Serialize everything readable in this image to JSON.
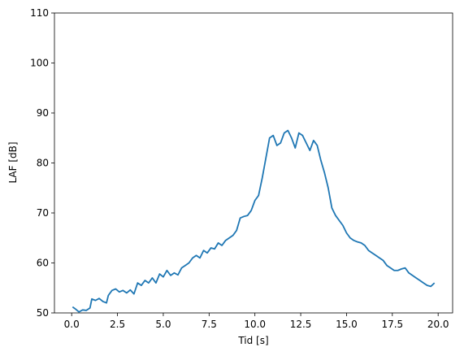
{
  "chart_data": {
    "type": "line",
    "xlabel": "Tid [s]",
    "ylabel": "LAF [dB]",
    "xlim": [
      -0.94,
      20.79
    ],
    "ylim": [
      50,
      110
    ],
    "xticks": [
      {
        "value": 0,
        "label": "0.0"
      },
      {
        "value": 2.5,
        "label": "2.5"
      },
      {
        "value": 5,
        "label": "5.0"
      },
      {
        "value": 7.5,
        "label": "7.5"
      },
      {
        "value": 10,
        "label": "10.0"
      },
      {
        "value": 12.5,
        "label": "12.5"
      },
      {
        "value": 15,
        "label": "15.0"
      },
      {
        "value": 17.5,
        "label": "17.5"
      },
      {
        "value": 20,
        "label": "20.0"
      }
    ],
    "yticks": [
      50,
      60,
      70,
      80,
      90,
      100,
      110
    ],
    "series": [
      {
        "color": "#1f77b4",
        "x": [
          0.05,
          0.2,
          0.4,
          0.6,
          0.8,
          1.0,
          1.1,
          1.3,
          1.5,
          1.7,
          1.9,
          2.0,
          2.2,
          2.4,
          2.6,
          2.8,
          3.0,
          3.2,
          3.4,
          3.6,
          3.8,
          4.0,
          4.2,
          4.4,
          4.6,
          4.8,
          5.0,
          5.2,
          5.4,
          5.6,
          5.8,
          6.0,
          6.2,
          6.4,
          6.6,
          6.8,
          7.0,
          7.2,
          7.4,
          7.6,
          7.8,
          8.0,
          8.2,
          8.4,
          8.6,
          8.8,
          9.0,
          9.2,
          9.4,
          9.6,
          9.8,
          10.0,
          10.2,
          10.4,
          10.6,
          10.8,
          11.0,
          11.2,
          11.4,
          11.6,
          11.8,
          12.0,
          12.2,
          12.4,
          12.6,
          12.8,
          13.0,
          13.2,
          13.4,
          13.6,
          13.8,
          14.0,
          14.2,
          14.4,
          14.6,
          14.8,
          15.0,
          15.2,
          15.4,
          15.6,
          15.8,
          16.0,
          16.2,
          16.4,
          16.6,
          16.8,
          17.0,
          17.2,
          17.4,
          17.6,
          17.8,
          18.0,
          18.2,
          18.4,
          18.6,
          18.8,
          19.0,
          19.2,
          19.4,
          19.6,
          19.8
        ],
        "values": [
          51.2,
          50.8,
          50.2,
          50.6,
          50.5,
          51,
          52.8,
          52.5,
          52.9,
          52.3,
          52,
          53.5,
          54.5,
          54.8,
          54.2,
          54.5,
          54,
          54.6,
          53.8,
          56,
          55.5,
          56.5,
          56,
          57,
          56,
          57.8,
          57.2,
          58.5,
          57.5,
          58,
          57.6,
          59,
          59.5,
          60,
          61,
          61.5,
          61,
          62.5,
          62,
          63,
          62.8,
          64,
          63.5,
          64.5,
          65,
          65.5,
          66.5,
          69,
          69.3,
          69.5,
          70.5,
          72.5,
          73.5,
          77,
          81,
          85,
          85.5,
          83.5,
          84,
          86,
          86.5,
          85,
          83,
          86,
          85.5,
          84,
          82.5,
          84.5,
          83.5,
          80.5,
          78,
          75,
          71,
          69.5,
          68.5,
          67.5,
          66,
          65,
          64.5,
          64.2,
          64,
          63.5,
          62.5,
          62,
          61.5,
          61,
          60.5,
          59.5,
          59,
          58.5,
          58.5,
          58.8,
          59,
          58,
          57.5,
          57,
          56.5,
          56,
          55.5,
          55.3,
          56
        ]
      }
    ]
  }
}
